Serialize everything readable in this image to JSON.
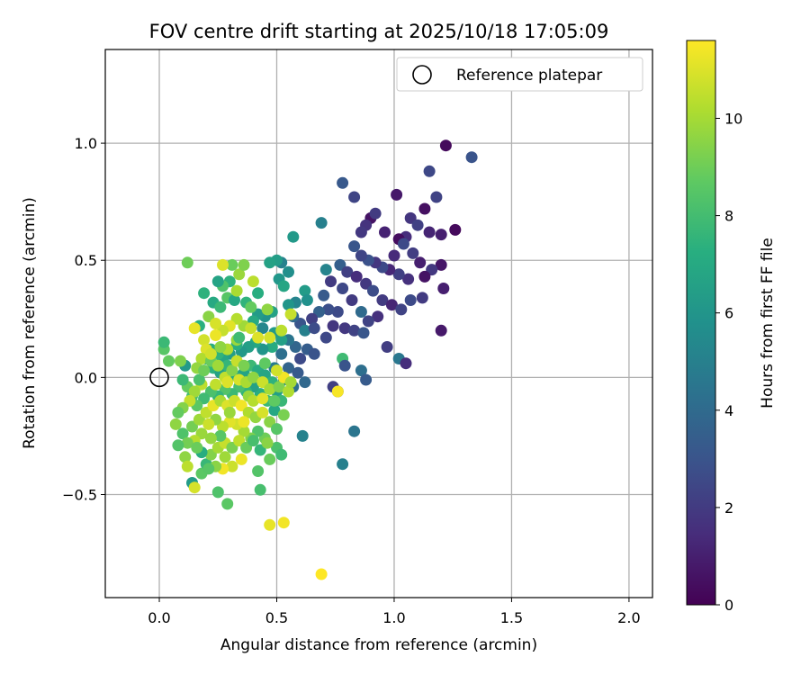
{
  "chart_data": {
    "type": "scatter",
    "title": "FOV centre drift starting at 2025/10/18 17:05:09",
    "xlabel": "Angular distance from reference (arcmin)",
    "ylabel": "Rotation from reference (arcmin)",
    "xlim": [
      -0.23,
      2.1
    ],
    "ylim": [
      -0.94,
      1.4
    ],
    "xticks": [
      0.0,
      0.5,
      1.0,
      1.5,
      2.0
    ],
    "xtick_labels": [
      "0.0",
      "0.5",
      "1.0",
      "1.5",
      "2.0"
    ],
    "yticks": [
      -0.5,
      0.0,
      0.5,
      1.0
    ],
    "ytick_labels": [
      "−0.5",
      "0.0",
      "0.5",
      "1.0"
    ],
    "grid": true,
    "reference_point": {
      "x": 0.0,
      "y": 0.0,
      "label": "Reference platepar"
    },
    "legend": {
      "position": "upper right",
      "entries": [
        "Reference platepar"
      ]
    },
    "colorbar": {
      "label": "Hours from first FF file",
      "min": 0,
      "max": 11.6,
      "ticks": [
        0,
        2,
        4,
        6,
        8,
        10
      ],
      "tick_labels": [
        "0",
        "2",
        "4",
        "6",
        "8",
        "10"
      ],
      "colormap": "viridis"
    },
    "points": [
      [
        1.22,
        0.99,
        0.3
      ],
      [
        1.33,
        0.94,
        3.0
      ],
      [
        1.15,
        0.88,
        2.5
      ],
      [
        1.18,
        0.77,
        2.3
      ],
      [
        1.01,
        0.78,
        0.8
      ],
      [
        1.13,
        0.72,
        0.5
      ],
      [
        1.07,
        0.68,
        1.8
      ],
      [
        1.26,
        0.63,
        0.3
      ],
      [
        1.2,
        0.61,
        1.0
      ],
      [
        1.15,
        0.62,
        1.2
      ],
      [
        1.1,
        0.65,
        2.2
      ],
      [
        1.05,
        0.6,
        1.5
      ],
      [
        1.02,
        0.59,
        0.4
      ],
      [
        0.9,
        0.68,
        0.6
      ],
      [
        0.88,
        0.65,
        1.7
      ],
      [
        0.86,
        0.62,
        1.9
      ],
      [
        0.83,
        0.77,
        2.4
      ],
      [
        0.78,
        0.83,
        3.2
      ],
      [
        0.92,
        0.7,
        2.0
      ],
      [
        0.96,
        0.62,
        1.1
      ],
      [
        1.04,
        0.57,
        2.6
      ],
      [
        1.08,
        0.53,
        2.1
      ],
      [
        1.0,
        0.52,
        1.4
      ],
      [
        1.11,
        0.49,
        1.0
      ],
      [
        1.2,
        0.48,
        0.7
      ],
      [
        1.16,
        0.46,
        1.9
      ],
      [
        1.13,
        0.43,
        0.6
      ],
      [
        1.06,
        0.42,
        1.6
      ],
      [
        1.02,
        0.44,
        2.2
      ],
      [
        0.98,
        0.46,
        1.3
      ],
      [
        0.95,
        0.47,
        2.6
      ],
      [
        0.92,
        0.49,
        1.8
      ],
      [
        0.89,
        0.5,
        2.9
      ],
      [
        0.86,
        0.52,
        2.4
      ],
      [
        0.83,
        0.56,
        3.1
      ],
      [
        0.77,
        0.48,
        3.5
      ],
      [
        0.8,
        0.45,
        2.2
      ],
      [
        0.84,
        0.43,
        1.5
      ],
      [
        0.88,
        0.4,
        1.9
      ],
      [
        0.91,
        0.37,
        2.7
      ],
      [
        0.95,
        0.33,
        2.0
      ],
      [
        0.99,
        0.31,
        1.2
      ],
      [
        1.03,
        0.29,
        2.3
      ],
      [
        1.07,
        0.33,
        2.6
      ],
      [
        1.12,
        0.34,
        2.0
      ],
      [
        1.21,
        0.38,
        1.0
      ],
      [
        1.2,
        0.2,
        0.8
      ],
      [
        0.97,
        0.13,
        2.1
      ],
      [
        1.02,
        0.08,
        4.6
      ],
      [
        1.05,
        0.06,
        1.5
      ],
      [
        0.93,
        0.26,
        1.6
      ],
      [
        0.89,
        0.24,
        2.3
      ],
      [
        0.86,
        0.28,
        4.0
      ],
      [
        0.82,
        0.33,
        2.0
      ],
      [
        0.78,
        0.38,
        2.5
      ],
      [
        0.73,
        0.41,
        2.0
      ],
      [
        0.7,
        0.35,
        3.3
      ],
      [
        0.76,
        0.28,
        2.6
      ],
      [
        0.72,
        0.29,
        2.8
      ],
      [
        0.68,
        0.28,
        3.6
      ],
      [
        0.65,
        0.25,
        2.2
      ],
      [
        0.6,
        0.23,
        3.0
      ],
      [
        0.62,
        0.2,
        5.0
      ],
      [
        0.57,
        0.26,
        3.9
      ],
      [
        0.66,
        0.21,
        2.7
      ],
      [
        0.71,
        0.17,
        2.5
      ],
      [
        0.74,
        0.22,
        1.8
      ],
      [
        0.79,
        0.21,
        1.9
      ],
      [
        0.83,
        0.2,
        2.3
      ],
      [
        0.87,
        0.19,
        3.1
      ],
      [
        0.63,
        0.12,
        3.4
      ],
      [
        0.66,
        0.1,
        3.0
      ],
      [
        0.6,
        0.08,
        2.6
      ],
      [
        0.58,
        0.13,
        3.8
      ],
      [
        0.55,
        0.16,
        4.5
      ],
      [
        0.52,
        0.1,
        4.2
      ],
      [
        0.55,
        0.04,
        3.7
      ],
      [
        0.59,
        0.02,
        3.3
      ],
      [
        0.62,
        -0.02,
        3.9
      ],
      [
        0.57,
        -0.04,
        4.2
      ],
      [
        0.53,
        -0.01,
        5.2
      ],
      [
        0.49,
        0.04,
        4.8
      ],
      [
        0.78,
        0.08,
        7.9
      ],
      [
        0.79,
        0.05,
        3.0
      ],
      [
        0.86,
        0.03,
        4.2
      ],
      [
        0.88,
        -0.01,
        3.3
      ],
      [
        0.74,
        -0.04,
        2.2
      ],
      [
        0.76,
        -0.06,
        2.5
      ],
      [
        0.83,
        -0.23,
        4.5
      ],
      [
        0.78,
        -0.37,
        5.0
      ],
      [
        0.61,
        -0.25,
        5.1
      ],
      [
        0.69,
        0.66,
        5.0
      ],
      [
        0.57,
        0.6,
        6.2
      ],
      [
        0.71,
        0.46,
        5.2
      ],
      [
        0.52,
        0.49,
        5.1
      ],
      [
        0.5,
        0.5,
        6.4
      ],
      [
        0.47,
        0.49,
        6.6
      ],
      [
        0.55,
        0.45,
        5.7
      ],
      [
        0.51,
        0.42,
        6.1
      ],
      [
        0.53,
        0.39,
        6.8
      ],
      [
        0.62,
        0.37,
        6.3
      ],
      [
        0.63,
        0.33,
        5.8
      ],
      [
        0.58,
        0.32,
        5.2
      ],
      [
        0.55,
        0.31,
        6.0
      ],
      [
        0.48,
        0.28,
        6.6
      ],
      [
        0.45,
        0.26,
        5.9
      ],
      [
        0.42,
        0.27,
        6.3
      ],
      [
        0.4,
        0.24,
        7.0
      ],
      [
        0.44,
        0.21,
        5.3
      ],
      [
        0.49,
        0.19,
        6.2
      ],
      [
        0.52,
        0.16,
        6.5
      ],
      [
        0.48,
        0.13,
        7.1
      ],
      [
        0.44,
        0.12,
        6.0
      ],
      [
        0.41,
        0.15,
        6.9
      ],
      [
        0.38,
        0.13,
        6.5
      ],
      [
        0.35,
        0.11,
        6.2
      ],
      [
        0.33,
        0.14,
        7.3
      ],
      [
        0.3,
        0.1,
        6.4
      ],
      [
        0.27,
        0.08,
        6.8
      ],
      [
        0.25,
        0.1,
        7.5
      ],
      [
        0.22,
        0.12,
        7.2
      ],
      [
        0.2,
        0.08,
        6.9
      ],
      [
        0.23,
        0.04,
        7.4
      ],
      [
        0.26,
        0.02,
        6.6
      ],
      [
        0.29,
        0.05,
        7.6
      ],
      [
        0.32,
        0.01,
        7.0
      ],
      [
        0.36,
        0.02,
        6.7
      ],
      [
        0.39,
        0.05,
        7.8
      ],
      [
        0.42,
        0.03,
        7.1
      ],
      [
        0.45,
        0.01,
        6.8
      ],
      [
        0.48,
        -0.02,
        7.4
      ],
      [
        0.5,
        -0.06,
        6.5
      ],
      [
        0.52,
        -0.1,
        7.7
      ],
      [
        0.49,
        -0.14,
        6.9
      ],
      [
        0.46,
        -0.1,
        7.8
      ],
      [
        0.43,
        -0.07,
        7.2
      ],
      [
        0.4,
        -0.04,
        6.6
      ],
      [
        0.37,
        -0.06,
        7.5
      ],
      [
        0.34,
        -0.04,
        8.1
      ],
      [
        0.31,
        -0.07,
        7.8
      ],
      [
        0.28,
        -0.05,
        8.4
      ],
      [
        0.25,
        -0.08,
        7.6
      ],
      [
        0.22,
        -0.06,
        8.2
      ],
      [
        0.19,
        -0.09,
        7.9
      ],
      [
        0.16,
        -0.12,
        8.6
      ],
      [
        0.14,
        -0.08,
        8.1
      ],
      [
        0.12,
        -0.04,
        8.8
      ],
      [
        0.1,
        -0.01,
        7.8
      ],
      [
        0.11,
        0.05,
        6.2
      ],
      [
        0.09,
        0.07,
        9.3
      ],
      [
        0.04,
        0.07,
        8.8
      ],
      [
        0.02,
        0.12,
        8.5
      ],
      [
        0.02,
        0.15,
        7.8
      ],
      [
        0.12,
        0.49,
        9.0
      ],
      [
        0.17,
        0.22,
        7.3
      ],
      [
        0.21,
        0.26,
        9.5
      ],
      [
        0.23,
        0.32,
        7.0
      ],
      [
        0.26,
        0.3,
        7.8
      ],
      [
        0.29,
        0.34,
        8.5
      ],
      [
        0.32,
        0.33,
        6.9
      ],
      [
        0.37,
        0.32,
        7.5
      ],
      [
        0.39,
        0.3,
        8.8
      ],
      [
        0.42,
        0.36,
        7.2
      ],
      [
        0.46,
        0.29,
        9.6
      ],
      [
        0.3,
        0.41,
        7.4
      ],
      [
        0.34,
        0.44,
        9.8
      ],
      [
        0.31,
        0.48,
        8.9
      ],
      [
        0.27,
        0.48,
        11.0
      ],
      [
        0.36,
        0.48,
        9.3
      ],
      [
        0.4,
        0.41,
        10.4
      ],
      [
        0.36,
        0.22,
        9.9
      ],
      [
        0.33,
        0.25,
        10.3
      ],
      [
        0.3,
        0.22,
        11.1
      ],
      [
        0.27,
        0.2,
        10.6
      ],
      [
        0.24,
        0.18,
        11.3
      ],
      [
        0.19,
        0.16,
        10.8
      ],
      [
        0.2,
        0.12,
        11.0
      ],
      [
        0.18,
        0.08,
        10.2
      ],
      [
        0.16,
        0.04,
        9.7
      ],
      [
        0.15,
        0.21,
        11.2
      ],
      [
        0.22,
        0.07,
        8.9
      ],
      [
        0.25,
        0.05,
        9.9
      ],
      [
        0.28,
        0.0,
        10.5
      ],
      [
        0.31,
        0.03,
        9.4
      ],
      [
        0.34,
        -0.01,
        10.9
      ],
      [
        0.37,
        -0.02,
        10.1
      ],
      [
        0.4,
        0.0,
        9.6
      ],
      [
        0.44,
        -0.02,
        10.7
      ],
      [
        0.47,
        -0.05,
        10.0
      ],
      [
        0.51,
        -0.04,
        9.3
      ],
      [
        0.53,
        0.0,
        11.4
      ],
      [
        0.5,
        0.03,
        10.8
      ],
      [
        0.55,
        -0.06,
        10.2
      ],
      [
        0.56,
        0.27,
        10.6
      ],
      [
        0.52,
        0.2,
        10.4
      ],
      [
        0.47,
        0.17,
        10.9
      ],
      [
        0.42,
        0.17,
        11.0
      ],
      [
        0.39,
        0.21,
        10.6
      ],
      [
        0.33,
        0.16,
        9.8
      ],
      [
        0.29,
        0.12,
        10.2
      ],
      [
        0.26,
        0.13,
        9.6
      ],
      [
        0.22,
        0.1,
        10.8
      ],
      [
        0.18,
        -0.03,
        10.4
      ],
      [
        0.15,
        -0.06,
        9.9
      ],
      [
        0.13,
        -0.1,
        10.6
      ],
      [
        0.1,
        -0.13,
        9.4
      ],
      [
        0.08,
        -0.15,
        8.8
      ],
      [
        0.07,
        -0.2,
        9.6
      ],
      [
        0.1,
        -0.24,
        8.3
      ],
      [
        0.14,
        -0.21,
        9.1
      ],
      [
        0.17,
        -0.18,
        9.9
      ],
      [
        0.2,
        -0.15,
        10.5
      ],
      [
        0.23,
        -0.12,
        11.2
      ],
      [
        0.26,
        -0.1,
        10.1
      ],
      [
        0.29,
        -0.12,
        11.0
      ],
      [
        0.32,
        -0.1,
        10.7
      ],
      [
        0.35,
        -0.12,
        11.4
      ],
      [
        0.38,
        -0.15,
        10.2
      ],
      [
        0.41,
        -0.17,
        9.7
      ],
      [
        0.44,
        -0.15,
        10.9
      ],
      [
        0.47,
        -0.19,
        9.5
      ],
      [
        0.5,
        -0.22,
        8.5
      ],
      [
        0.45,
        -0.26,
        9.0
      ],
      [
        0.42,
        -0.23,
        8.3
      ],
      [
        0.39,
        -0.26,
        9.3
      ],
      [
        0.36,
        -0.23,
        10.0
      ],
      [
        0.33,
        -0.2,
        10.8
      ],
      [
        0.3,
        -0.19,
        11.1
      ],
      [
        0.27,
        -0.21,
        10.4
      ],
      [
        0.24,
        -0.18,
        9.6
      ],
      [
        0.21,
        -0.2,
        10.7
      ],
      [
        0.18,
        -0.24,
        9.8
      ],
      [
        0.15,
        -0.27,
        10.3
      ],
      [
        0.12,
        -0.28,
        9.1
      ],
      [
        0.08,
        -0.29,
        8.4
      ],
      [
        0.11,
        -0.34,
        9.6
      ],
      [
        0.12,
        -0.38,
        10.4
      ],
      [
        0.14,
        -0.45,
        6.3
      ],
      [
        0.15,
        -0.47,
        10.9
      ],
      [
        0.18,
        -0.41,
        8.6
      ],
      [
        0.2,
        -0.37,
        7.7
      ],
      [
        0.22,
        -0.33,
        9.4
      ],
      [
        0.25,
        -0.3,
        10.0
      ],
      [
        0.28,
        -0.28,
        10.6
      ],
      [
        0.31,
        -0.3,
        9.2
      ],
      [
        0.34,
        -0.27,
        10.5
      ],
      [
        0.37,
        -0.3,
        8.9
      ],
      [
        0.4,
        -0.27,
        8.1
      ],
      [
        0.43,
        -0.31,
        7.6
      ],
      [
        0.47,
        -0.35,
        8.9
      ],
      [
        0.5,
        -0.3,
        8.2
      ],
      [
        0.52,
        -0.33,
        7.9
      ],
      [
        0.46,
        -0.28,
        9.5
      ],
      [
        0.35,
        -0.35,
        11.3
      ],
      [
        0.31,
        -0.38,
        10.7
      ],
      [
        0.27,
        -0.39,
        11.4
      ],
      [
        0.24,
        -0.38,
        9.5
      ],
      [
        0.21,
        -0.39,
        8.5
      ],
      [
        0.25,
        -0.49,
        8.3
      ],
      [
        0.29,
        -0.54,
        8.6
      ],
      [
        0.42,
        -0.4,
        8.4
      ],
      [
        0.43,
        -0.48,
        8.1
      ],
      [
        0.47,
        -0.63,
        11.2
      ],
      [
        0.53,
        -0.62,
        11.4
      ],
      [
        0.69,
        -0.84,
        11.6
      ],
      [
        0.76,
        -0.06,
        11.5
      ],
      [
        0.17,
        -0.01,
        8.2
      ],
      [
        0.19,
        0.03,
        9.0
      ],
      [
        0.24,
        -0.03,
        10.5
      ],
      [
        0.33,
        0.07,
        10.6
      ],
      [
        0.36,
        0.05,
        9.2
      ],
      [
        0.38,
        -0.08,
        9.8
      ],
      [
        0.29,
        -0.02,
        11.0
      ],
      [
        0.3,
        -0.15,
        9.8
      ],
      [
        0.26,
        -0.25,
        8.5
      ],
      [
        0.22,
        -0.26,
        9.7
      ],
      [
        0.36,
        -0.19,
        11.3
      ],
      [
        0.4,
        -0.1,
        10.3
      ],
      [
        0.44,
        -0.09,
        11.1
      ],
      [
        0.49,
        -0.1,
        8.7
      ],
      [
        0.53,
        -0.16,
        9.2
      ],
      [
        0.56,
        -0.02,
        10.0
      ],
      [
        0.27,
        0.39,
        8.3
      ],
      [
        0.33,
        0.37,
        10.1
      ],
      [
        0.24,
        0.23,
        10.9
      ],
      [
        0.19,
        0.36,
        7.4
      ],
      [
        0.25,
        0.41,
        6.7
      ],
      [
        0.34,
        0.17,
        7.9
      ],
      [
        0.45,
        0.06,
        8.7
      ],
      [
        0.28,
        -0.34,
        9.9
      ],
      [
        0.18,
        -0.32,
        7.2
      ],
      [
        0.16,
        -0.3,
        8.9
      ]
    ]
  }
}
